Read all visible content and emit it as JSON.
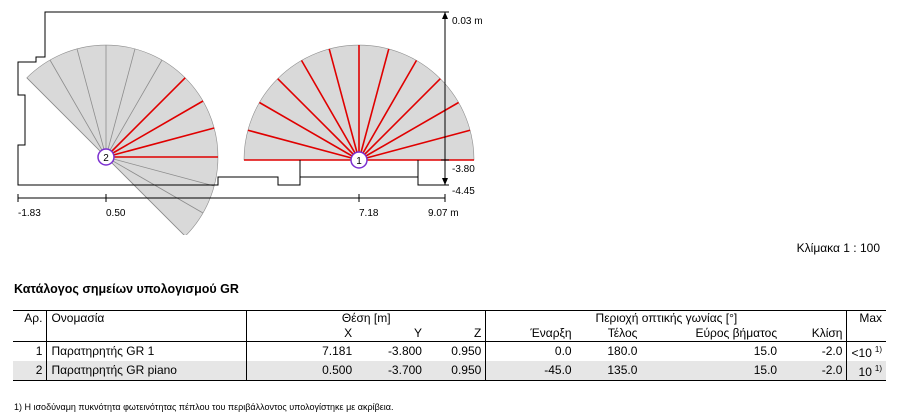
{
  "plan": {
    "dim_labels": {
      "top_right": "0.03 m",
      "right_mid": "-3.80",
      "right_low": "-4.45",
      "bottom": [
        "-1.83",
        "0.50",
        "7.18",
        "9.07 m"
      ]
    },
    "observers": [
      {
        "id": "1",
        "start_deg": 0,
        "end_deg": 180,
        "step_deg": 15
      },
      {
        "id": "2",
        "start_deg": -45,
        "end_deg": 135,
        "step_deg": 15
      }
    ],
    "colors": {
      "room_outline": "#000000",
      "fan_fill": "#d9d9d9",
      "fan_line_gray": "#8c8c8c",
      "fan_line_red": "#e00000",
      "marker": "#7b2fd0"
    }
  },
  "scale_text": "Κλίμακα 1 : 100",
  "catalog": {
    "title": "Κατάλογος σημείων υπολογισμού GR",
    "headers": {
      "no": "Αρ.",
      "name": "Ονομασία",
      "position": "Θέση [m]",
      "x": "X",
      "y": "Y",
      "z": "Z",
      "range": "Περιοχή οπτικής γωνίας [°]",
      "start": "Έναρξη",
      "end": "Τέλος",
      "step": "Εύρος βήματος",
      "tilt": "Κλίση",
      "max": "Max"
    },
    "rows": [
      {
        "no": "1",
        "name": "Παρατηρητής GR 1",
        "x": "7.181",
        "y": "-3.800",
        "z": "0.950",
        "start": "0.0",
        "end": "180.0",
        "step": "15.0",
        "tilt": "-2.0",
        "max": "<10",
        "note": "1)"
      },
      {
        "no": "2",
        "name": "Παρατηρητής GR piano",
        "x": "0.500",
        "y": "-3.700",
        "z": "0.950",
        "start": "-45.0",
        "end": "135.0",
        "step": "15.0",
        "tilt": "-2.0",
        "max": "10",
        "note": "1)"
      }
    ],
    "footnote": "1) Η ισοδύναμη πυκνότητα φωτεινότητας πέπλου του περιβάλλοντος υπολογίστηκε με ακρίβεια."
  }
}
